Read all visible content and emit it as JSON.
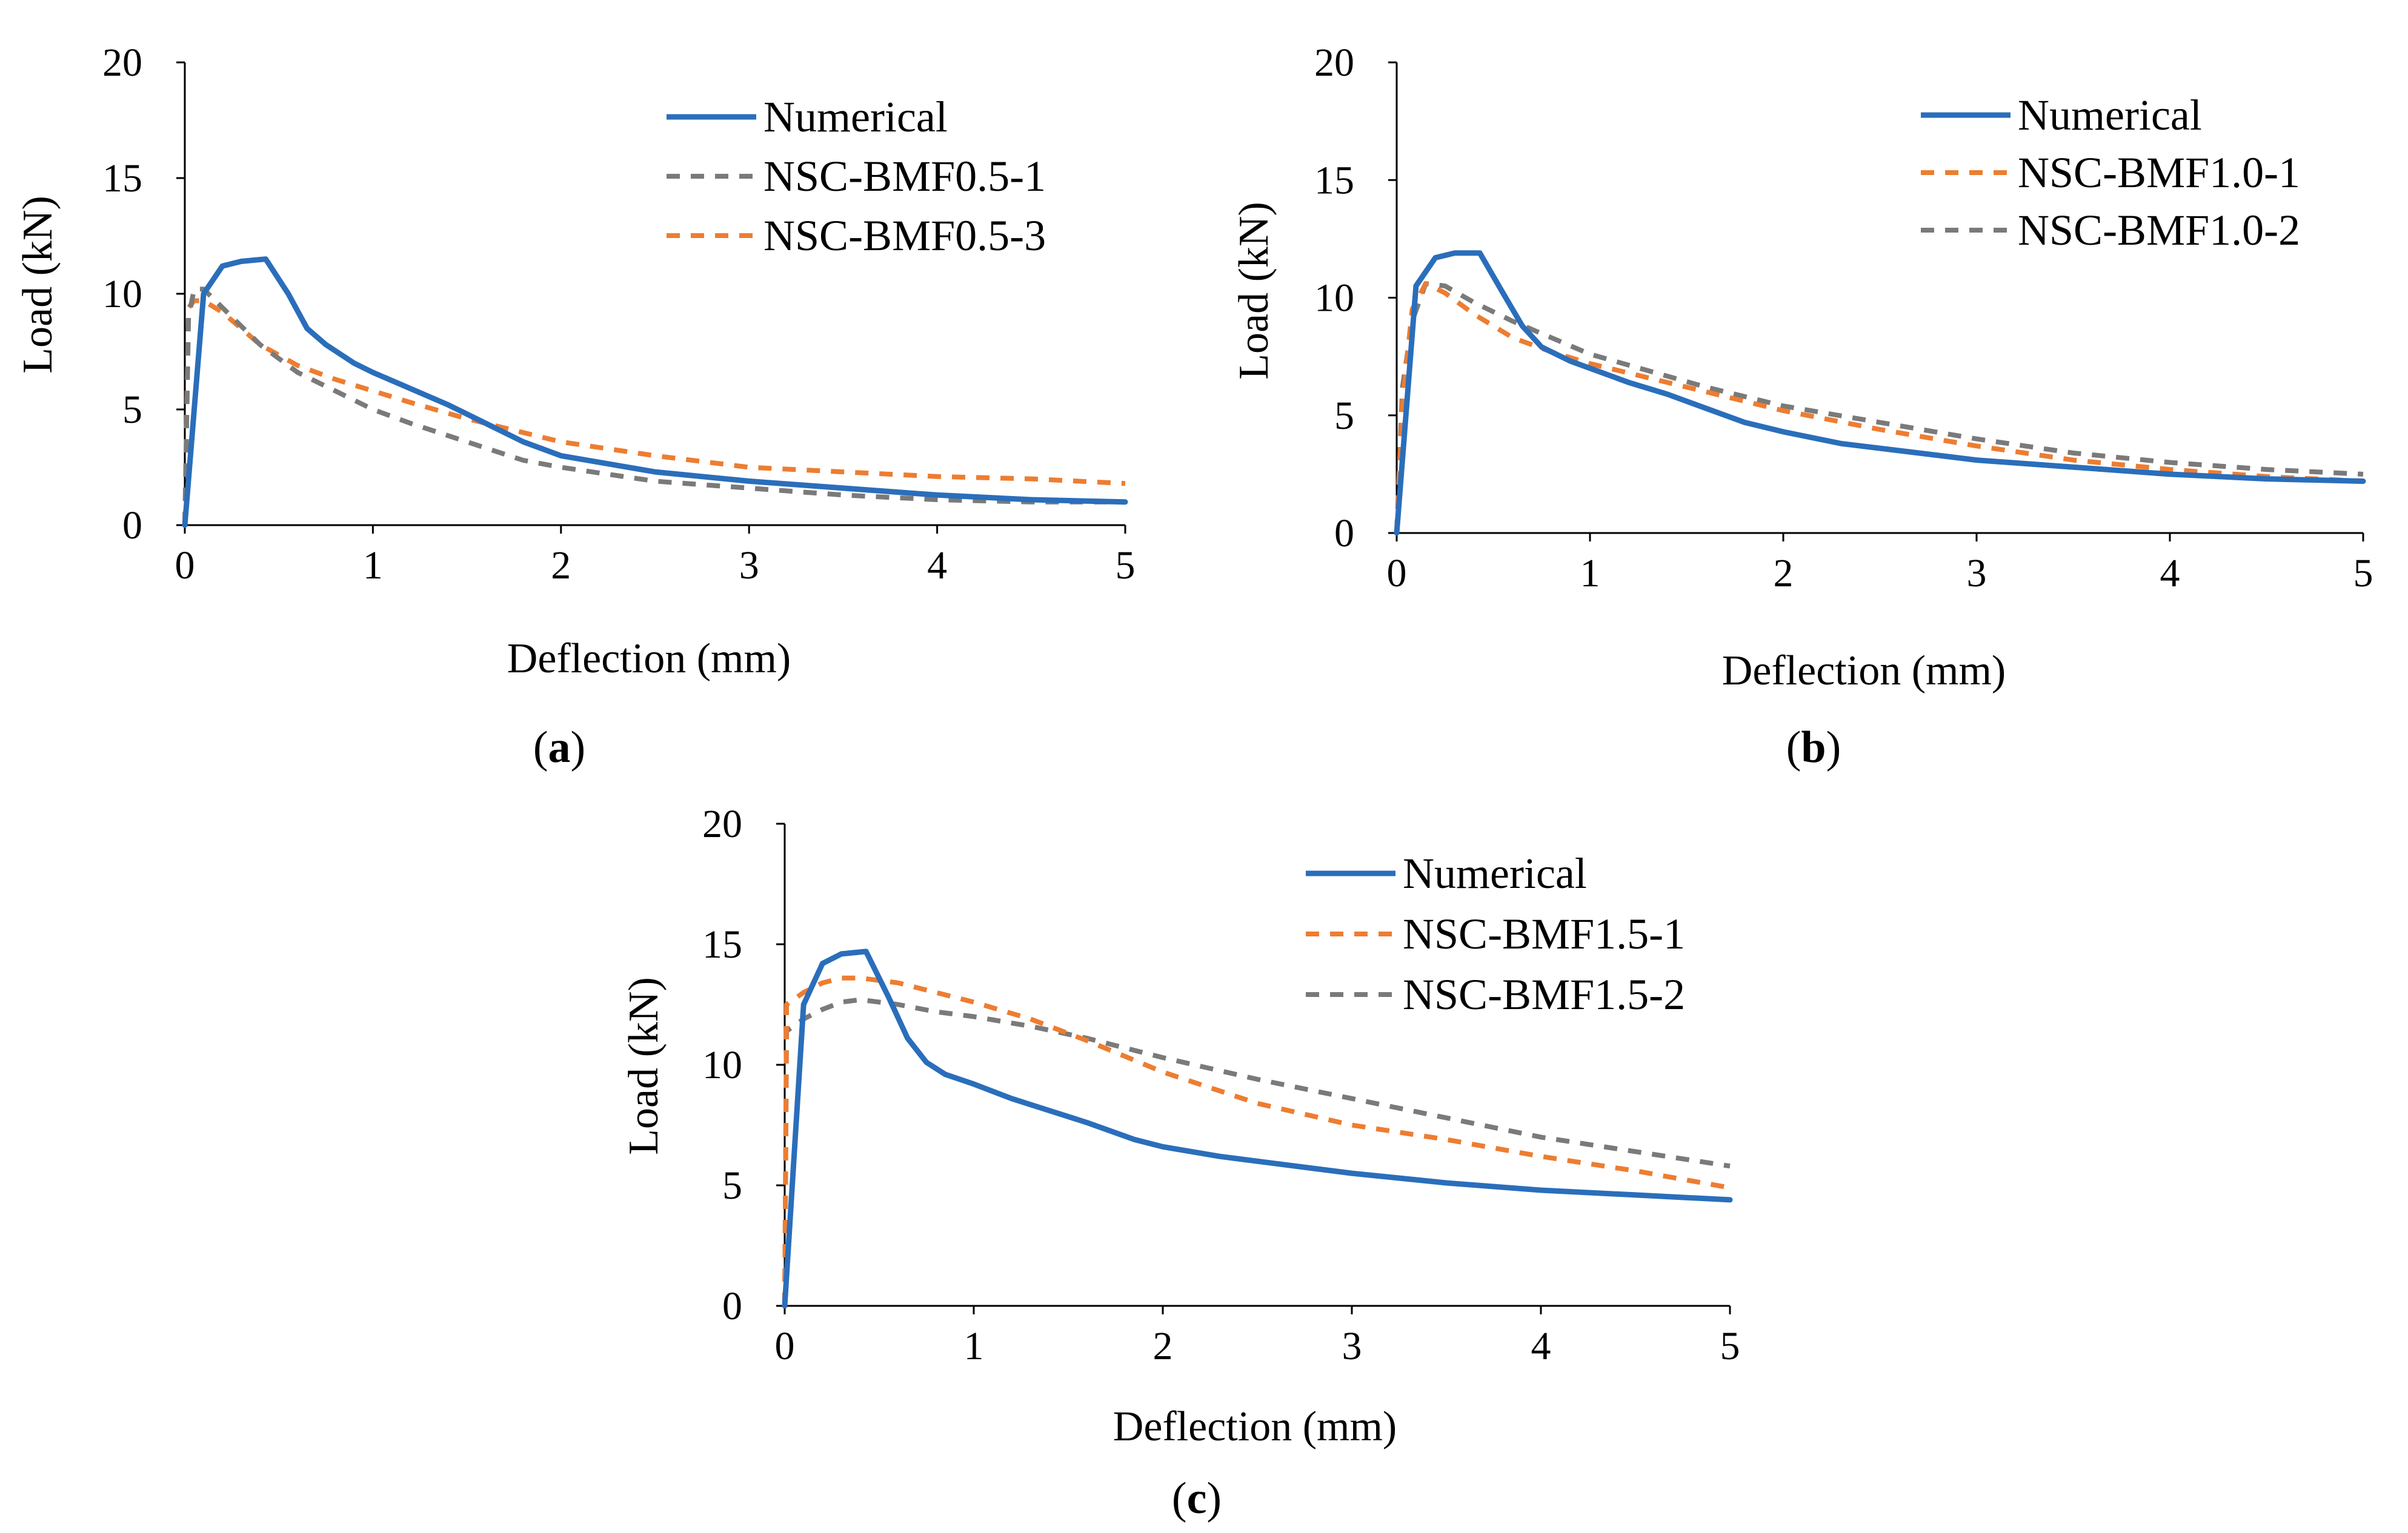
{
  "chart_data": [
    {
      "type": "line",
      "caption": "a",
      "xlabel": "Deflection (mm)",
      "ylabel": "Load (kN)",
      "xlim": [
        0,
        5
      ],
      "ylim": [
        0,
        20
      ],
      "xticks": [
        0,
        1,
        2,
        3,
        4,
        5
      ],
      "yticks": [
        0,
        5,
        10,
        15,
        20
      ],
      "legend_position": "top-right",
      "series": [
        {
          "name": "Numerical",
          "color": "#2a6ebb",
          "style": "solid",
          "x": [
            0,
            0.1,
            0.2,
            0.3,
            0.43,
            0.55,
            0.65,
            0.75,
            0.9,
            1.0,
            1.2,
            1.4,
            1.6,
            1.8,
            2.0,
            2.5,
            3.0,
            3.5,
            4.0,
            4.5,
            5.0
          ],
          "y": [
            0,
            10,
            11.2,
            11.4,
            11.5,
            10,
            8.5,
            7.8,
            7.0,
            6.6,
            5.9,
            5.2,
            4.4,
            3.6,
            3.0,
            2.3,
            1.9,
            1.6,
            1.3,
            1.1,
            1.0
          ]
        },
        {
          "name": "NSC-BMF0.5-1",
          "color": "#7a7a7a",
          "style": "dashed",
          "x": [
            0,
            0.02,
            0.05,
            0.1,
            0.2,
            0.4,
            0.6,
            0.8,
            1.0,
            1.2,
            1.5,
            1.8,
            2.0,
            2.5,
            3.0,
            3.5,
            4.0,
            4.5,
            5.0
          ],
          "y": [
            0,
            9,
            10.2,
            10.2,
            9.4,
            7.8,
            6.6,
            5.8,
            5.0,
            4.4,
            3.6,
            2.8,
            2.5,
            1.9,
            1.6,
            1.3,
            1.1,
            1.0,
            1.0
          ]
        },
        {
          "name": "NSC-BMF0.5-3",
          "color": "#ed7d31",
          "style": "dashed",
          "x": [
            0,
            0.02,
            0.05,
            0.1,
            0.2,
            0.4,
            0.6,
            0.8,
            1.0,
            1.2,
            1.5,
            1.8,
            2.0,
            2.5,
            3.0,
            3.5,
            4.0,
            4.5,
            5.0
          ],
          "y": [
            0,
            9.4,
            9.7,
            9.7,
            9.2,
            7.8,
            6.9,
            6.3,
            5.8,
            5.3,
            4.6,
            4.0,
            3.6,
            3.0,
            2.5,
            2.3,
            2.1,
            2.0,
            1.8
          ]
        }
      ]
    },
    {
      "type": "line",
      "caption": "b",
      "xlabel": "Deflection (mm)",
      "ylabel": "Load (kN)",
      "xlim": [
        0,
        5
      ],
      "ylim": [
        0,
        20
      ],
      "xticks": [
        0,
        1,
        2,
        3,
        4,
        5
      ],
      "yticks": [
        0,
        5,
        10,
        15,
        20
      ],
      "legend_position": "top-right",
      "series": [
        {
          "name": "Numerical",
          "color": "#2a6ebb",
          "style": "solid",
          "x": [
            0,
            0.1,
            0.2,
            0.3,
            0.43,
            0.55,
            0.65,
            0.75,
            0.9,
            1.0,
            1.2,
            1.4,
            1.6,
            1.8,
            2.0,
            2.3,
            2.6,
            3.0,
            3.5,
            4.0,
            4.5,
            5.0
          ],
          "y": [
            0,
            10.5,
            11.7,
            11.9,
            11.9,
            10.2,
            8.8,
            7.9,
            7.3,
            7.0,
            6.4,
            5.9,
            5.3,
            4.7,
            4.3,
            3.8,
            3.5,
            3.1,
            2.8,
            2.5,
            2.3,
            2.2
          ]
        },
        {
          "name": "NSC-BMF1.0-1",
          "color": "#ed7d31",
          "style": "dashed",
          "x": [
            0,
            0.03,
            0.08,
            0.15,
            0.25,
            0.4,
            0.6,
            0.8,
            1.0,
            1.3,
            1.6,
            2.0,
            2.5,
            3.0,
            3.5,
            4.0,
            4.5,
            5.0
          ],
          "y": [
            0,
            5.5,
            9.5,
            10.6,
            10.2,
            9.3,
            8.3,
            7.7,
            7.2,
            6.6,
            6.0,
            5.2,
            4.4,
            3.7,
            3.1,
            2.7,
            2.4,
            2.2
          ]
        },
        {
          "name": "NSC-BMF1.0-2",
          "color": "#7a7a7a",
          "style": "dashed",
          "x": [
            0,
            0.03,
            0.08,
            0.15,
            0.25,
            0.4,
            0.6,
            0.8,
            1.0,
            1.3,
            1.6,
            2.0,
            2.5,
            3.0,
            3.5,
            4.0,
            4.5,
            5.0
          ],
          "y": [
            0,
            6.2,
            9.0,
            10.6,
            10.5,
            9.8,
            9.0,
            8.3,
            7.6,
            6.9,
            6.2,
            5.4,
            4.7,
            4.0,
            3.4,
            3.0,
            2.7,
            2.5
          ]
        }
      ]
    },
    {
      "type": "line",
      "caption": "c",
      "xlabel": "Deflection (mm)",
      "ylabel": "Load (kN)",
      "xlim": [
        0,
        5
      ],
      "ylim": [
        0,
        20
      ],
      "xticks": [
        0,
        1,
        2,
        3,
        4,
        5
      ],
      "yticks": [
        0,
        5,
        10,
        15,
        20
      ],
      "legend_position": "top-right",
      "series": [
        {
          "name": "Numerical",
          "color": "#2a6ebb",
          "style": "solid",
          "x": [
            0,
            0.1,
            0.2,
            0.3,
            0.43,
            0.55,
            0.65,
            0.75,
            0.85,
            1.0,
            1.2,
            1.4,
            1.6,
            1.85,
            2.0,
            2.3,
            2.6,
            3.0,
            3.5,
            4.0,
            4.5,
            5.0
          ],
          "y": [
            0,
            12.5,
            14.2,
            14.6,
            14.7,
            12.8,
            11.1,
            10.1,
            9.6,
            9.2,
            8.6,
            8.1,
            7.6,
            6.9,
            6.6,
            6.2,
            5.9,
            5.5,
            5.1,
            4.8,
            4.6,
            4.4
          ]
        },
        {
          "name": "NSC-BMF1.5-1",
          "color": "#ed7d31",
          "style": "dashed",
          "x": [
            0,
            0.01,
            0.1,
            0.2,
            0.3,
            0.4,
            0.6,
            0.8,
            1.0,
            1.3,
            1.6,
            2.0,
            2.5,
            3.0,
            3.5,
            4.0,
            4.5,
            5.0
          ],
          "y": [
            0,
            12.5,
            13.0,
            13.4,
            13.6,
            13.6,
            13.4,
            13.0,
            12.6,
            11.9,
            11.0,
            9.7,
            8.4,
            7.5,
            6.9,
            6.2,
            5.6,
            4.9
          ]
        },
        {
          "name": "NSC-BMF1.5-2",
          "color": "#7a7a7a",
          "style": "dashed",
          "x": [
            0,
            0.01,
            0.1,
            0.2,
            0.3,
            0.4,
            0.6,
            0.8,
            1.0,
            1.3,
            1.6,
            2.0,
            2.5,
            3.0,
            3.5,
            4.0,
            4.5,
            5.0
          ],
          "y": [
            0,
            11.4,
            11.9,
            12.3,
            12.6,
            12.7,
            12.5,
            12.2,
            12.0,
            11.6,
            11.1,
            10.3,
            9.4,
            8.6,
            7.8,
            7.0,
            6.4,
            5.8
          ]
        }
      ]
    }
  ]
}
